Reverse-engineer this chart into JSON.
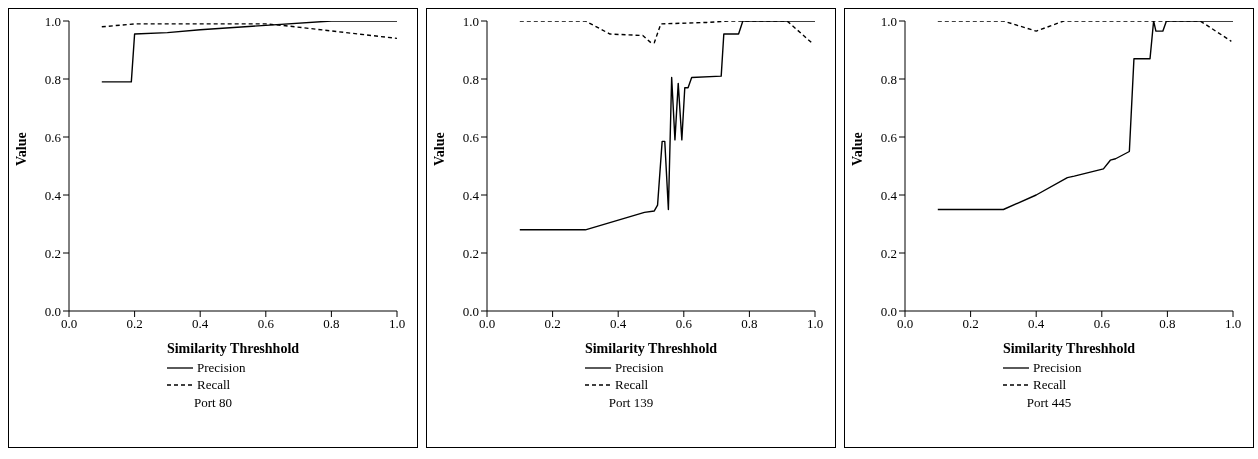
{
  "chart_data": [
    {
      "type": "line",
      "title": "Port 80",
      "xlabel": "Similarity Threshhold",
      "ylabel": "Value",
      "xlim": [
        0,
        1
      ],
      "ylim": [
        0,
        1
      ],
      "xticks": [
        {
          "value": 0,
          "label": "0.0"
        },
        {
          "value": 0.2,
          "label": "0.2"
        },
        {
          "value": 0.4,
          "label": "0.4"
        },
        {
          "value": 0.6,
          "label": "0.6"
        },
        {
          "value": 0.8,
          "label": "0.8"
        },
        {
          "value": 1,
          "label": "1.0"
        }
      ],
      "yticks": [
        {
          "value": 0,
          "label": "0.0"
        },
        {
          "value": 0.2,
          "label": "0.2"
        },
        {
          "value": 0.4,
          "label": "0.4"
        },
        {
          "value": 0.6,
          "label": "0.6"
        },
        {
          "value": 0.8,
          "label": "0.8"
        },
        {
          "value": 1,
          "label": "1.0"
        }
      ],
      "legend": "bottom",
      "grid": false,
      "marker": "none",
      "series": [
        {
          "name": "Precision",
          "color": "#000000",
          "line_style": "solid",
          "x": [
            0.1,
            0.19,
            0.2,
            0.3,
            0.4,
            0.6,
            0.8,
            1.0
          ],
          "values": [
            0.79,
            0.79,
            0.955,
            0.96,
            0.97,
            0.985,
            1.0,
            1.0
          ]
        },
        {
          "name": "Recall",
          "color": "#000000",
          "line_style": "dashed",
          "x": [
            0.1,
            0.2,
            0.6,
            0.65,
            1.0
          ],
          "values": [
            0.98,
            0.99,
            0.99,
            0.985,
            0.94
          ]
        }
      ]
    },
    {
      "type": "line",
      "title": "Port 139",
      "xlabel": "Similarity Threshhold",
      "ylabel": "Value",
      "xlim": [
        0,
        1
      ],
      "ylim": [
        0,
        1
      ],
      "xticks": [
        {
          "value": 0,
          "label": "0.0"
        },
        {
          "value": 0.2,
          "label": "0.2"
        },
        {
          "value": 0.4,
          "label": "0.4"
        },
        {
          "value": 0.6,
          "label": "0.6"
        },
        {
          "value": 0.8,
          "label": "0.8"
        },
        {
          "value": 1,
          "label": "1.0"
        }
      ],
      "yticks": [
        {
          "value": 0,
          "label": "0.0"
        },
        {
          "value": 0.2,
          "label": "0.2"
        },
        {
          "value": 0.4,
          "label": "0.4"
        },
        {
          "value": 0.6,
          "label": "0.6"
        },
        {
          "value": 0.8,
          "label": "0.8"
        },
        {
          "value": 1,
          "label": "1.0"
        }
      ],
      "legend": "bottom",
      "grid": false,
      "marker": "none",
      "series": [
        {
          "name": "Precision",
          "color": "#000000",
          "line_style": "solid",
          "x": [
            0.1,
            0.3,
            0.48,
            0.51,
            0.52,
            0.534,
            0.542,
            0.553,
            0.563,
            0.573,
            0.583,
            0.594,
            0.603,
            0.613,
            0.624,
            0.714,
            0.722,
            0.767,
            0.78,
            1.0
          ],
          "values": [
            0.28,
            0.28,
            0.34,
            0.345,
            0.365,
            0.585,
            0.585,
            0.35,
            0.805,
            0.59,
            0.785,
            0.59,
            0.77,
            0.77,
            0.805,
            0.81,
            0.955,
            0.955,
            1.0,
            1.0
          ]
        },
        {
          "name": "Recall",
          "color": "#000000",
          "line_style": "dashed",
          "x": [
            0.1,
            0.3,
            0.375,
            0.475,
            0.5,
            0.51,
            0.53,
            0.67,
            0.735,
            0.915,
            0.995
          ],
          "values": [
            1.0,
            1.0,
            0.955,
            0.95,
            0.925,
            0.925,
            0.99,
            0.995,
            1.0,
            1.0,
            0.92
          ]
        }
      ]
    },
    {
      "type": "line",
      "title": "Port 445",
      "xlabel": "Similarity Threshhold",
      "ylabel": "Value",
      "xlim": [
        0,
        1
      ],
      "ylim": [
        0,
        1
      ],
      "xticks": [
        {
          "value": 0,
          "label": "0.0"
        },
        {
          "value": 0.2,
          "label": "0.2"
        },
        {
          "value": 0.4,
          "label": "0.4"
        },
        {
          "value": 0.6,
          "label": "0.6"
        },
        {
          "value": 0.8,
          "label": "0.8"
        },
        {
          "value": 1,
          "label": "1.0"
        }
      ],
      "yticks": [
        {
          "value": 0,
          "label": "0.0"
        },
        {
          "value": 0.2,
          "label": "0.2"
        },
        {
          "value": 0.4,
          "label": "0.4"
        },
        {
          "value": 0.6,
          "label": "0.6"
        },
        {
          "value": 0.8,
          "label": "0.8"
        },
        {
          "value": 1,
          "label": "1.0"
        }
      ],
      "legend": "bottom",
      "grid": false,
      "marker": "none",
      "series": [
        {
          "name": "Precision",
          "color": "#000000",
          "line_style": "solid",
          "x": [
            0.1,
            0.3,
            0.4,
            0.495,
            0.516,
            0.605,
            0.626,
            0.642,
            0.684,
            0.698,
            0.747,
            0.758,
            0.765,
            0.786,
            0.797,
            1.0
          ],
          "values": [
            0.35,
            0.35,
            0.4,
            0.46,
            0.465,
            0.49,
            0.52,
            0.525,
            0.55,
            0.87,
            0.87,
            1.0,
            0.965,
            0.965,
            1.0,
            1.0
          ]
        },
        {
          "name": "Recall",
          "color": "#000000",
          "line_style": "dashed",
          "x": [
            0.1,
            0.3,
            0.4,
            0.484,
            0.9,
            0.995
          ],
          "values": [
            1.0,
            1.0,
            0.965,
            1.0,
            1.0,
            0.93
          ]
        }
      ]
    }
  ]
}
